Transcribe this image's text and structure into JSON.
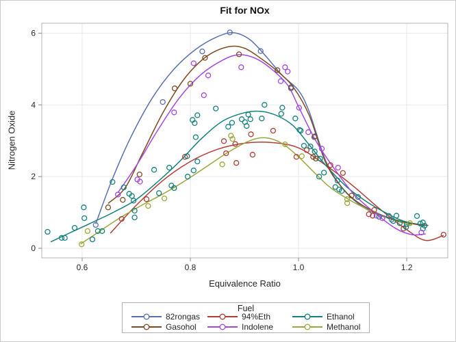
{
  "figure_title": "Fit for NOx",
  "chart_data": {
    "type": "scatter",
    "subtype": "scatter-with-spline-fit-by-group",
    "title": "Fit for NOx",
    "xlabel": "Equivalence Ratio",
    "ylabel": "Nitrogen Oxide",
    "x_ticks": [
      0.6,
      0.8,
      1.0,
      1.2
    ],
    "x_tick_labels": [
      "0.6",
      "0.8",
      "1.0",
      "1.2"
    ],
    "y_ticks": [
      0,
      2,
      4,
      6
    ],
    "y_tick_labels": [
      "0",
      "2",
      "4",
      "6"
    ],
    "xlim": [
      0.5253,
      1.2759
    ],
    "ylim": [
      -0.267,
      6.276
    ],
    "grid": true,
    "legend": {
      "title": "Fuel",
      "position": "bottom",
      "columns": 3
    },
    "colors": {
      "grid": "#e9e9e9",
      "frame": "#b3b3b3",
      "tick": "#8a8a8a",
      "text": "#262626"
    },
    "series": [
      {
        "name": "82rongas",
        "color": "#5a6fb2",
        "points": [
          [
            0.625,
            0.65
          ],
          [
            0.749,
            4.08
          ],
          [
            0.822,
            5.49
          ],
          [
            0.873,
            6.02
          ],
          [
            0.93,
            5.5
          ],
          [
            0.986,
            4.46
          ],
          [
            1.029,
            3.1
          ],
          [
            1.172,
            0.8
          ]
        ],
        "curve": [
          [
            0.625,
            0.68
          ],
          [
            0.655,
            1.9
          ],
          [
            0.69,
            3.1
          ],
          [
            0.73,
            4.2
          ],
          [
            0.77,
            5.0
          ],
          [
            0.81,
            5.55
          ],
          [
            0.85,
            5.9
          ],
          [
            0.88,
            6.01
          ],
          [
            0.91,
            5.82
          ],
          [
            0.94,
            5.35
          ],
          [
            0.97,
            4.82
          ],
          [
            1.0,
            4.4
          ],
          [
            1.02,
            3.8
          ],
          [
            1.05,
            2.45
          ],
          [
            1.08,
            1.7
          ],
          [
            1.11,
            1.25
          ],
          [
            1.14,
            0.98
          ],
          [
            1.17,
            0.82
          ],
          [
            1.185,
            0.76
          ]
        ]
      },
      {
        "name": "94%Eth",
        "color": "#b23c33",
        "points": [
          [
            0.673,
            0.82
          ],
          [
            0.719,
            1.37
          ],
          [
            0.79,
            2.55
          ],
          [
            0.862,
            2.99
          ],
          [
            0.866,
            2.65
          ],
          [
            0.883,
            2.91
          ],
          [
            0.885,
            2.38
          ],
          [
            0.912,
            3.18
          ],
          [
            0.915,
            2.61
          ],
          [
            0.953,
            3.28
          ],
          [
            0.996,
            2.55
          ],
          [
            1.015,
            2.74
          ],
          [
            1.059,
            2.32
          ],
          [
            1.082,
            2.1
          ],
          [
            1.13,
            0.95
          ],
          [
            1.137,
            0.91
          ],
          [
            1.14,
            1.07
          ],
          [
            1.194,
            0.55
          ],
          [
            1.268,
            0.38
          ]
        ],
        "curve": [
          [
            0.652,
            0.42
          ],
          [
            0.7,
            1.2
          ],
          [
            0.75,
            1.9
          ],
          [
            0.8,
            2.42
          ],
          [
            0.85,
            2.76
          ],
          [
            0.9,
            2.93
          ],
          [
            0.95,
            2.95
          ],
          [
            1.0,
            2.8
          ],
          [
            1.05,
            2.32
          ],
          [
            1.1,
            1.75
          ],
          [
            1.15,
            1.1
          ],
          [
            1.2,
            0.52
          ],
          [
            1.235,
            0.22
          ],
          [
            1.268,
            0.36
          ]
        ]
      },
      {
        "name": "Ethanol",
        "color": "#13807d",
        "points": [
          [
            0.536,
            0.46
          ],
          [
            0.562,
            0.29
          ],
          [
            0.568,
            0.29
          ],
          [
            0.586,
            0.57
          ],
          [
            0.603,
            1.14
          ],
          [
            0.604,
            0.84
          ],
          [
            0.619,
            0.25
          ],
          [
            0.629,
            0.48
          ],
          [
            0.637,
            0.48
          ],
          [
            0.656,
            1.85
          ],
          [
            0.677,
            1.7
          ],
          [
            0.687,
            1.52
          ],
          [
            0.692,
            1.46
          ],
          [
            0.695,
            1.33
          ],
          [
            0.697,
            1.05
          ],
          [
            0.697,
            0.86
          ],
          [
            0.733,
            2.19
          ],
          [
            0.742,
            1.54
          ],
          [
            0.761,
            2.25
          ],
          [
            0.765,
            1.75
          ],
          [
            0.77,
            1.68
          ],
          [
            0.794,
            2.57
          ],
          [
            0.795,
            2.0
          ],
          [
            0.804,
            3.58
          ],
          [
            0.806,
            2.17
          ],
          [
            0.808,
            3.49
          ],
          [
            0.81,
            3.1
          ],
          [
            0.813,
            2.42
          ],
          [
            0.813,
            3.71
          ],
          [
            0.847,
            3.9
          ],
          [
            0.87,
            3.39
          ],
          [
            0.877,
            3.5
          ],
          [
            0.895,
            3.6
          ],
          [
            0.901,
            3.52
          ],
          [
            0.904,
            3.41
          ],
          [
            0.907,
            3.73
          ],
          [
            0.911,
            3.6
          ],
          [
            0.932,
            3.62
          ],
          [
            0.937,
            4.0
          ],
          [
            0.968,
            3.75
          ],
          [
            0.97,
            3.92
          ],
          [
            0.994,
            3.62
          ],
          [
            1.002,
            3.3
          ],
          [
            1.004,
            3.28
          ],
          [
            1.01,
            2.86
          ],
          [
            1.022,
            2.84
          ],
          [
            1.03,
            2.7
          ],
          [
            1.038,
            2.0
          ],
          [
            1.04,
            2.5
          ],
          [
            1.047,
            2.11
          ],
          [
            1.068,
            1.71
          ],
          [
            1.072,
            1.89
          ],
          [
            1.075,
            1.64
          ],
          [
            1.08,
            1.6
          ],
          [
            1.11,
            1.43
          ],
          [
            1.149,
            0.88
          ],
          [
            1.167,
            0.9
          ],
          [
            1.175,
            0.76
          ],
          [
            1.181,
            0.91
          ],
          [
            1.187,
            0.7
          ],
          [
            1.199,
            0.59
          ],
          [
            1.2,
            0.67
          ],
          [
            1.219,
            0.9
          ],
          [
            1.225,
            0.69
          ],
          [
            1.23,
            0.72
          ],
          [
            1.23,
            0.55
          ],
          [
            1.233,
            0.63
          ]
        ],
        "curve": [
          [
            0.542,
            0.18
          ],
          [
            0.58,
            0.45
          ],
          [
            0.62,
            0.73
          ],
          [
            0.66,
            1.02
          ],
          [
            0.7,
            1.36
          ],
          [
            0.74,
            1.86
          ],
          [
            0.78,
            2.42
          ],
          [
            0.82,
            3.05
          ],
          [
            0.86,
            3.55
          ],
          [
            0.9,
            3.78
          ],
          [
            0.93,
            3.82
          ],
          [
            0.96,
            3.7
          ],
          [
            0.99,
            3.42
          ],
          [
            1.02,
            2.88
          ],
          [
            1.05,
            2.32
          ],
          [
            1.09,
            1.7
          ],
          [
            1.13,
            1.26
          ],
          [
            1.17,
            0.92
          ],
          [
            1.2,
            0.73
          ],
          [
            1.237,
            0.64
          ]
        ]
      },
      {
        "name": "Gasohol",
        "color": "#7d4a21",
        "points": [
          [
            0.648,
            1.14
          ],
          [
            0.675,
            1.35
          ],
          [
            0.706,
            2.06
          ],
          [
            0.771,
            4.46
          ],
          [
            0.8,
            4.59
          ],
          [
            0.827,
            5.31
          ],
          [
            0.89,
            5.41
          ],
          [
            0.961,
            4.97
          ],
          [
            0.986,
            4.49
          ],
          [
            1.027,
            2.55
          ],
          [
            1.03,
            3.12
          ],
          [
            1.032,
            2.5
          ],
          [
            1.098,
            1.47
          ]
        ],
        "curve": [
          [
            0.648,
            1.25
          ],
          [
            0.68,
            1.7
          ],
          [
            0.71,
            2.6
          ],
          [
            0.75,
            3.8
          ],
          [
            0.79,
            4.75
          ],
          [
            0.83,
            5.35
          ],
          [
            0.87,
            5.62
          ],
          [
            0.9,
            5.58
          ],
          [
            0.93,
            5.3
          ],
          [
            0.96,
            4.95
          ],
          [
            0.99,
            4.5
          ],
          [
            1.02,
            3.7
          ],
          [
            1.05,
            2.4
          ],
          [
            1.08,
            1.7
          ],
          [
            1.11,
            1.28
          ],
          [
            1.15,
            0.95
          ],
          [
            1.19,
            0.75
          ],
          [
            1.22,
            0.66
          ],
          [
            1.24,
            0.64
          ]
        ]
      },
      {
        "name": "Indolene",
        "color": "#a546df",
        "points": [
          [
            0.666,
            1.5
          ],
          [
            0.702,
            1.92
          ],
          [
            0.707,
            1.86
          ],
          [
            0.77,
            3.79
          ],
          [
            0.806,
            5.16
          ],
          [
            0.825,
            4.27
          ],
          [
            0.833,
            4.82
          ],
          [
            0.894,
            5.05
          ],
          [
            0.967,
            4.66
          ],
          [
            0.975,
            5.05
          ],
          [
            0.98,
            4.93
          ],
          [
            1.001,
            3.92
          ],
          [
            1.018,
            3.24
          ],
          [
            1.043,
            2.78
          ],
          [
            1.073,
            2.25
          ],
          [
            1.144,
            0.91
          ],
          [
            1.155,
            0.84
          ],
          [
            1.227,
            0.44
          ]
        ],
        "curve": [
          [
            0.666,
            1.55
          ],
          [
            0.7,
            2.3
          ],
          [
            0.74,
            3.3
          ],
          [
            0.78,
            4.2
          ],
          [
            0.82,
            4.85
          ],
          [
            0.86,
            5.25
          ],
          [
            0.89,
            5.4
          ],
          [
            0.92,
            5.3
          ],
          [
            0.95,
            5.0
          ],
          [
            0.98,
            4.55
          ],
          [
            1.0,
            3.95
          ],
          [
            1.03,
            3.05
          ],
          [
            1.06,
            2.35
          ],
          [
            1.1,
            1.55
          ],
          [
            1.14,
            1.0
          ],
          [
            1.18,
            0.55
          ],
          [
            1.21,
            0.38
          ],
          [
            1.235,
            0.4
          ]
        ]
      },
      {
        "name": "Methanol",
        "color": "#9ba63c",
        "points": [
          [
            0.599,
            0.11
          ],
          [
            0.61,
            0.48
          ],
          [
            0.722,
            1.18
          ],
          [
            0.752,
            1.39
          ],
          [
            0.859,
            2.34
          ],
          [
            0.875,
            3.14
          ],
          [
            0.878,
            3.05
          ],
          [
            0.975,
            2.9
          ],
          [
            1.006,
            2.57
          ],
          [
            1.09,
            1.37
          ],
          [
            1.09,
            1.26
          ],
          [
            1.206,
            0.7
          ]
        ],
        "curve": [
          [
            0.597,
            0.12
          ],
          [
            0.63,
            0.45
          ],
          [
            0.67,
            0.85
          ],
          [
            0.71,
            1.2
          ],
          [
            0.75,
            1.52
          ],
          [
            0.79,
            1.88
          ],
          [
            0.83,
            2.28
          ],
          [
            0.87,
            2.68
          ],
          [
            0.91,
            3.0
          ],
          [
            0.94,
            3.08
          ],
          [
            0.97,
            2.92
          ],
          [
            1.0,
            2.55
          ],
          [
            1.03,
            2.1
          ],
          [
            1.06,
            1.68
          ],
          [
            1.1,
            1.3
          ],
          [
            1.14,
            1.0
          ],
          [
            1.18,
            0.76
          ],
          [
            1.21,
            0.66
          ]
        ]
      }
    ]
  }
}
